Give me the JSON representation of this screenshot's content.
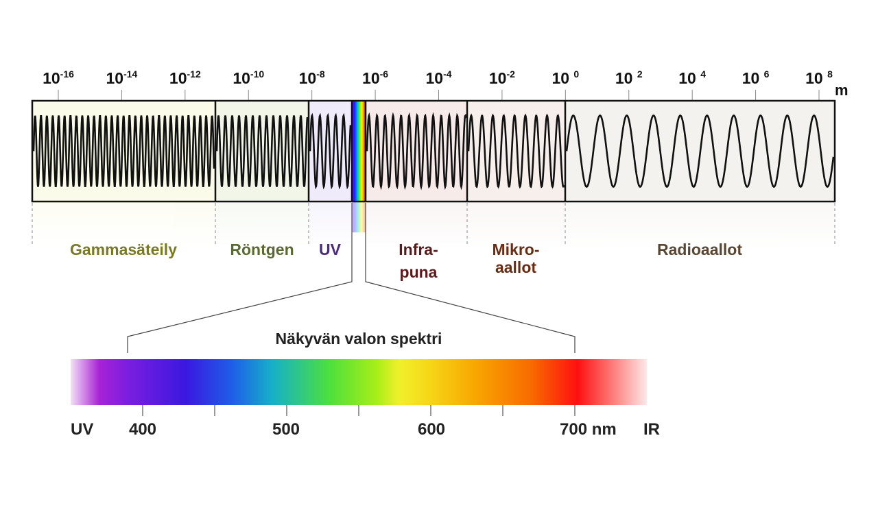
{
  "wavelength_axis": {
    "ticks": [
      {
        "base": "10",
        "exp": "-16"
      },
      {
        "base": "10",
        "exp": "-14"
      },
      {
        "base": "10",
        "exp": "-12"
      },
      {
        "base": "10",
        "exp": "-10"
      },
      {
        "base": "10",
        "exp": "-8"
      },
      {
        "base": "10",
        "exp": "-6"
      },
      {
        "base": "10",
        "exp": "-4"
      },
      {
        "base": "10",
        "exp": "-2"
      },
      {
        "base": "10 ",
        "exp": "0"
      },
      {
        "base": "10 ",
        "exp": "2"
      },
      {
        "base": "10 ",
        "exp": "4"
      },
      {
        "base": "10 ",
        "exp": "6"
      },
      {
        "base": "10 ",
        "exp": "8"
      }
    ],
    "unit": "m"
  },
  "regions": {
    "gamma": {
      "label": "Gammasäteily",
      "color": "#7a7a1e",
      "fill": "#fbfbe9"
    },
    "xray": {
      "label": "Röntgen",
      "color": "#5a6a2c",
      "fill": "#f1f6e9"
    },
    "uv": {
      "label": "UV",
      "color": "#4b2a80",
      "fill": "#efebfb"
    },
    "infrared": {
      "line1": "Infra-",
      "line2": "puna",
      "color": "#5a1a1a",
      "fill": "#f7ebea"
    },
    "microwave": {
      "line1": "Mikro-",
      "line2": "aallot",
      "color": "#6b2c12",
      "fill": "#f6efec"
    },
    "radio": {
      "label": "Radioaallot",
      "color": "#5a4630",
      "fill": "#f4f2ee"
    }
  },
  "visible": {
    "title": "Näkyvän valon spektri",
    "uv_label": "UV",
    "ir_label": "IR",
    "tick_labels": [
      "400",
      "500",
      "600",
      "700 nm"
    ]
  }
}
